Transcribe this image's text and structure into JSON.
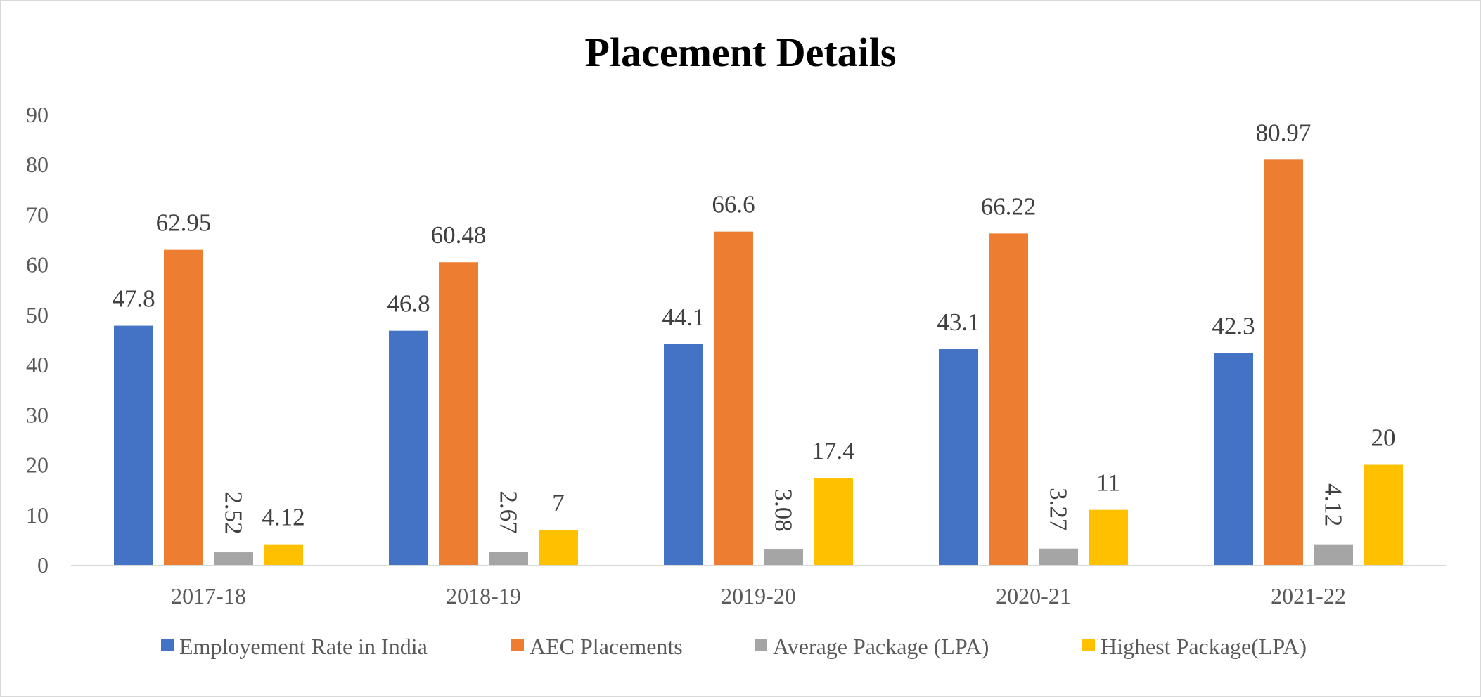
{
  "chart_data": {
    "type": "bar",
    "title": "Placement Details",
    "xlabel": "",
    "ylabel": "",
    "ylim": [
      0,
      90
    ],
    "yticks": [
      "0",
      "10",
      "20",
      "30",
      "40",
      "50",
      "60",
      "70",
      "80",
      "90"
    ],
    "categories": [
      "2017-18",
      "2018-19",
      "2019-20",
      "2020-21",
      "2021-22"
    ],
    "series": [
      {
        "name": "Employement Rate in India",
        "color": "#4472C4",
        "values": [
          47.8,
          46.8,
          44.1,
          43.1,
          42.3
        ],
        "labels": [
          "47.8",
          "46.8",
          "44.1",
          "43.1",
          "42.3"
        ],
        "label_rotation": 0
      },
      {
        "name": "AEC Placements",
        "color": "#ED7D31",
        "values": [
          62.95,
          60.48,
          66.6,
          66.22,
          80.97
        ],
        "labels": [
          "62.95",
          "60.48",
          "66.6",
          "66.22",
          "80.97"
        ],
        "label_rotation": 0
      },
      {
        "name": "Average Package (LPA)",
        "color": "#A5A5A5",
        "values": [
          2.52,
          2.67,
          3.08,
          3.27,
          4.12
        ],
        "labels": [
          "2.52",
          "2.67",
          "3.08",
          "3.27",
          "4.12"
        ],
        "label_rotation": 90
      },
      {
        "name": "Highest Package(LPA)",
        "color": "#FFC000",
        "values": [
          4.12,
          7,
          17.4,
          11,
          20
        ],
        "labels": [
          "4.12",
          "7",
          "17.4",
          "11",
          "20"
        ],
        "label_rotation": 0
      }
    ],
    "grid": false,
    "legend_position": "bottom"
  }
}
